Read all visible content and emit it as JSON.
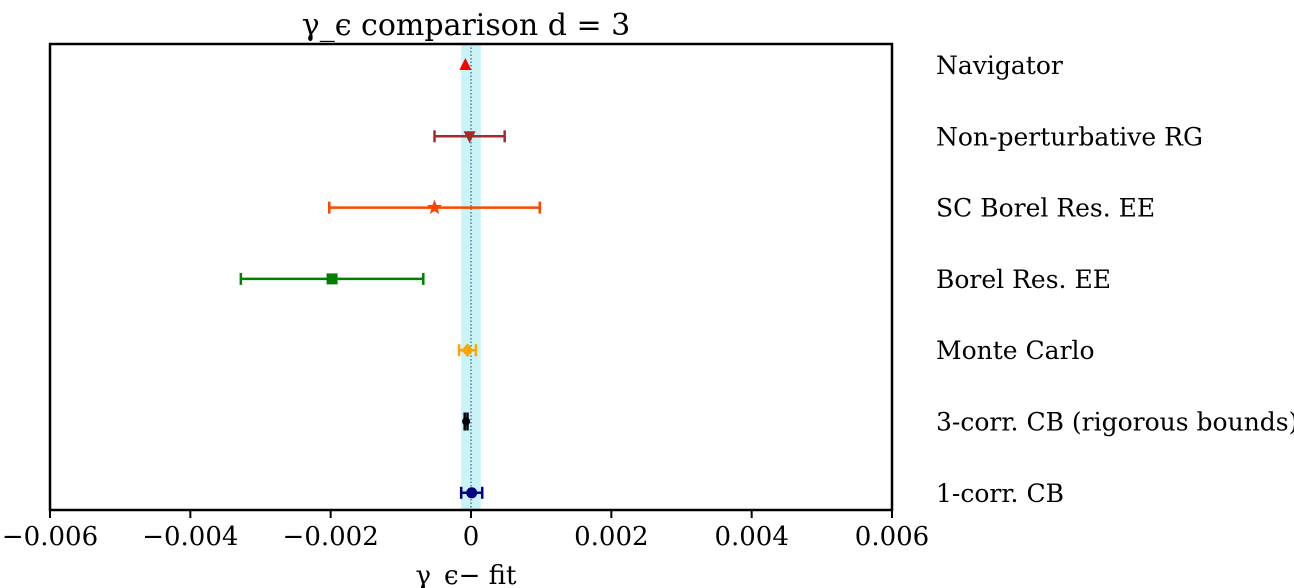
{
  "chart_data": {
    "type": "scatter",
    "title": "γ_ϵ comparison d = 3",
    "xlabel": "γ_ϵ− fit",
    "ylabel": "",
    "xlim": [
      -0.006,
      0.006
    ],
    "x_ticks": [
      -0.006,
      -0.004,
      -0.002,
      0,
      0.002,
      0.004,
      0.006
    ],
    "x_tick_labels": [
      "−0.006",
      "−0.004",
      "−0.002",
      "0",
      "0.002",
      "0.004",
      "0.006"
    ],
    "grid": false,
    "reference_band": {
      "low": -0.00014,
      "high": 0.00014,
      "center": 0,
      "color": "#c9f3f7"
    },
    "points": [
      {
        "label": "Navigator",
        "x": -8e-05,
        "err": 0,
        "marker": "triangle-up",
        "color": "#ff0000"
      },
      {
        "label": "Non-perturbative RG",
        "x": -2e-05,
        "err": 0.0005,
        "marker": "triangle-down",
        "color": "#a52a2a"
      },
      {
        "label": "SC Borel Res. EE",
        "x": -0.00052,
        "err": 0.0015,
        "marker": "star",
        "color": "#ff4500"
      },
      {
        "label": "Borel Res. EE",
        "x": -0.00198,
        "err": 0.0013,
        "marker": "square",
        "color": "#008000"
      },
      {
        "label": "Monte Carlo",
        "x": -5e-05,
        "err": 0.00012,
        "marker": "diamond",
        "color": "#ffa500"
      },
      {
        "label": "3-corr. CB (rigorous bounds)",
        "x": -7e-05,
        "err": 2e-05,
        "marker": "circle-small",
        "color": "#000000"
      },
      {
        "label": "1-corr. CB",
        "x": 1e-05,
        "err": 0.00015,
        "marker": "circle",
        "color": "#000080"
      }
    ]
  }
}
